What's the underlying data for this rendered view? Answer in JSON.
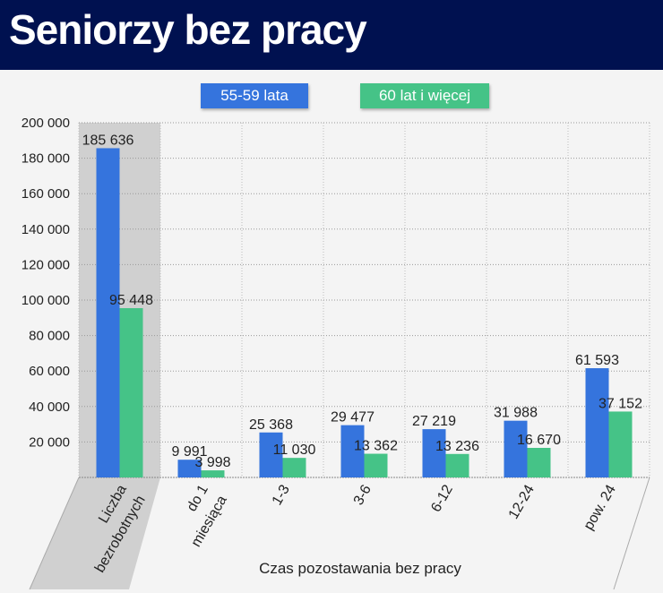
{
  "title": "Seniorzy bez pracy",
  "chart_data": {
    "type": "bar",
    "title": "Seniorzy bez pracy",
    "xlabel": "Czas pozostawania bez pracy",
    "ylabel": "",
    "ylim": [
      0,
      200000
    ],
    "yticks": [
      "20 000",
      "40 000",
      "60 000",
      "80 000",
      "100 000",
      "120 000",
      "140 000",
      "160 000",
      "180 000",
      "200 000"
    ],
    "categories": [
      "Liczba bezrobotnych",
      "do 1 miesiąca",
      "1-3",
      "3-6",
      "6-12",
      "12-24",
      "pow. 24"
    ],
    "series": [
      {
        "name": "55-59 lata",
        "color": "#3574dd",
        "values": [
          185636,
          9991,
          25368,
          29477,
          27219,
          31988,
          61593
        ],
        "labels": [
          "185 636",
          "9 991",
          "25 368",
          "29 477",
          "27 219",
          "31 988",
          "61 593"
        ]
      },
      {
        "name": "60 lat i więcej",
        "color": "#45c387",
        "values": [
          95448,
          3998,
          11030,
          13362,
          13236,
          16670,
          37152
        ],
        "labels": [
          "95 448",
          "3 998",
          "11 030",
          "13 362",
          "13 236",
          "16 670",
          "37 152"
        ]
      }
    ],
    "grid": true,
    "legend": "top"
  }
}
